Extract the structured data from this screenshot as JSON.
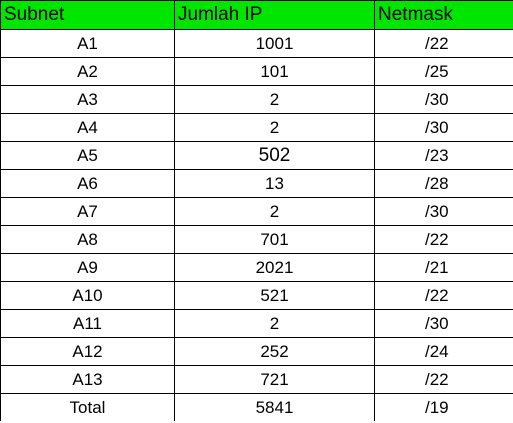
{
  "headers": {
    "subnet": "Subnet",
    "jumlah_ip": "Jumlah IP",
    "netmask": "Netmask"
  },
  "colors": {
    "header_fill": "#00e600",
    "grid_line": "#000000",
    "cell_fill": "#ffffff"
  },
  "rows": [
    {
      "subnet": "A1",
      "jumlah_ip": "1001",
      "netmask": "/22"
    },
    {
      "subnet": "A2",
      "jumlah_ip": "101",
      "netmask": "/25"
    },
    {
      "subnet": "A3",
      "jumlah_ip": "2",
      "netmask": "/30"
    },
    {
      "subnet": "A4",
      "jumlah_ip": "2",
      "netmask": "/30"
    },
    {
      "subnet": "A5",
      "jumlah_ip": "502",
      "netmask": "/23"
    },
    {
      "subnet": "A6",
      "jumlah_ip": "13",
      "netmask": "/28"
    },
    {
      "subnet": "A7",
      "jumlah_ip": "2",
      "netmask": "/30"
    },
    {
      "subnet": "A8",
      "jumlah_ip": "701",
      "netmask": "/22"
    },
    {
      "subnet": "A9",
      "jumlah_ip": "2021",
      "netmask": "/21"
    },
    {
      "subnet": "A10",
      "jumlah_ip": "521",
      "netmask": "/22"
    },
    {
      "subnet": "A11",
      "jumlah_ip": "2",
      "netmask": "/30"
    },
    {
      "subnet": "A12",
      "jumlah_ip": "252",
      "netmask": "/24"
    },
    {
      "subnet": "A13",
      "jumlah_ip": "721",
      "netmask": "/22"
    },
    {
      "subnet": "Total",
      "jumlah_ip": "5841",
      "netmask": "/19"
    }
  ]
}
